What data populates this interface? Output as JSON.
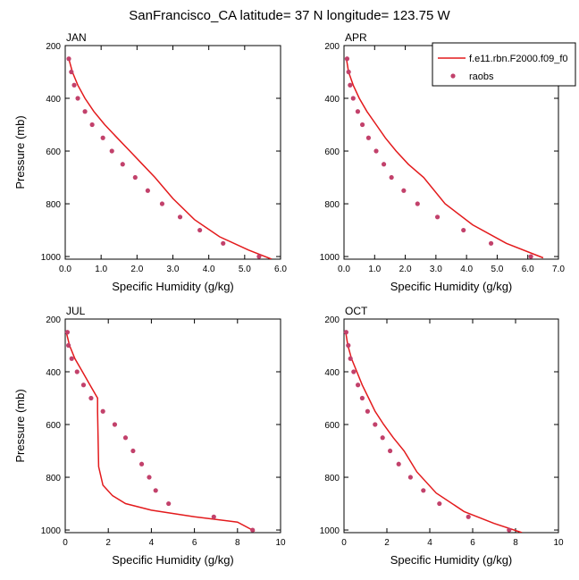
{
  "title": "SanFrancisco_CA  latitude= 37 N longitude= 123.75 W",
  "legend": {
    "model_label": "f.e11.rbn.F2000.f09_f0",
    "obs_label": "raobs",
    "model_color": "#e31a1c",
    "obs_color": "#c2416b"
  },
  "chart_data": [
    {
      "type": "line",
      "panel": "JAN",
      "xlabel": "Specific Humidity (g/kg)",
      "ylabel": "Pressure (mb)",
      "xlim": [
        0,
        6
      ],
      "ylim": [
        1010,
        200
      ],
      "xticks": [
        "0.0",
        "1.0",
        "2.0",
        "3.0",
        "4.0",
        "5.0",
        "6.0"
      ],
      "yticks": [
        "200",
        "400",
        "600",
        "800",
        "1000"
      ],
      "series": [
        {
          "name": "f.e11.rbn.F2000.f09_f0",
          "kind": "line",
          "x": [
            0.1,
            0.2,
            0.35,
            0.55,
            0.8,
            1.1,
            1.45,
            1.8,
            2.15,
            2.5,
            3.0,
            3.6,
            4.3,
            5.1,
            5.75
          ],
          "y": [
            250,
            300,
            350,
            400,
            450,
            500,
            550,
            600,
            650,
            700,
            780,
            860,
            925,
            975,
            1010
          ]
        },
        {
          "name": "raobs",
          "kind": "scatter",
          "x": [
            0.1,
            0.17,
            0.25,
            0.35,
            0.55,
            0.75,
            1.05,
            1.3,
            1.6,
            1.95,
            2.3,
            2.7,
            3.2,
            3.75,
            4.4,
            5.4
          ],
          "y": [
            250,
            300,
            350,
            400,
            450,
            500,
            550,
            600,
            650,
            700,
            750,
            800,
            850,
            900,
            950,
            1000
          ]
        }
      ]
    },
    {
      "type": "line",
      "panel": "APR",
      "xlabel": "Specific Humidity (g/kg)",
      "ylabel": "",
      "xlim": [
        0,
        7
      ],
      "ylim": [
        1010,
        200
      ],
      "xticks": [
        "0.0",
        "1.0",
        "2.0",
        "3.0",
        "4.0",
        "5.0",
        "6.0",
        "7.0"
      ],
      "yticks": [
        "200",
        "400",
        "600",
        "800",
        "1000"
      ],
      "series": [
        {
          "name": "f.e11.rbn.F2000.f09_f0",
          "kind": "line",
          "x": [
            0.08,
            0.15,
            0.3,
            0.5,
            0.75,
            1.05,
            1.35,
            1.7,
            2.1,
            2.6,
            3.3,
            4.2,
            5.3,
            6.5
          ],
          "y": [
            250,
            300,
            350,
            400,
            450,
            500,
            550,
            600,
            650,
            700,
            800,
            880,
            950,
            1005
          ]
        },
        {
          "name": "raobs",
          "kind": "scatter",
          "x": [
            0.1,
            0.15,
            0.2,
            0.3,
            0.45,
            0.6,
            0.8,
            1.05,
            1.3,
            1.55,
            1.95,
            2.4,
            3.05,
            3.9,
            4.8,
            6.1
          ],
          "y": [
            250,
            300,
            350,
            400,
            450,
            500,
            550,
            600,
            650,
            700,
            750,
            800,
            850,
            900,
            950,
            1000
          ]
        }
      ]
    },
    {
      "type": "line",
      "panel": "JUL",
      "xlabel": "Specific Humidity (g/kg)",
      "ylabel": "Pressure (mb)",
      "xlim": [
        0,
        10
      ],
      "ylim": [
        1010,
        200
      ],
      "xticks": [
        "0",
        "2",
        "4",
        "6",
        "8",
        "10"
      ],
      "yticks": [
        "200",
        "400",
        "600",
        "800",
        "1000"
      ],
      "series": [
        {
          "name": "f.e11.rbn.F2000.f09_f0",
          "kind": "line",
          "x": [
            0.05,
            0.2,
            0.45,
            0.8,
            1.15,
            1.5,
            1.5,
            1.55,
            1.75,
            2.2,
            2.8,
            4.0,
            6.0,
            8.0,
            8.8
          ],
          "y": [
            250,
            300,
            350,
            400,
            450,
            500,
            550,
            760,
            830,
            870,
            900,
            925,
            950,
            970,
            1005
          ]
        },
        {
          "name": "raobs",
          "kind": "scatter",
          "x": [
            0.1,
            0.15,
            0.3,
            0.55,
            0.85,
            1.2,
            1.75,
            2.3,
            2.8,
            3.15,
            3.55,
            3.9,
            4.2,
            4.8,
            6.9,
            8.7
          ],
          "y": [
            250,
            300,
            350,
            400,
            450,
            500,
            550,
            600,
            650,
            700,
            750,
            800,
            850,
            900,
            950,
            1000
          ]
        }
      ]
    },
    {
      "type": "line",
      "panel": "OCT",
      "xlabel": "Specific Humidity (g/kg)",
      "ylabel": "",
      "xlim": [
        0,
        10
      ],
      "ylim": [
        1010,
        200
      ],
      "xticks": [
        "0",
        "2",
        "4",
        "6",
        "8",
        "10"
      ],
      "yticks": [
        "200",
        "400",
        "600",
        "800",
        "1000"
      ],
      "series": [
        {
          "name": "f.e11.rbn.F2000.f09_f0",
          "kind": "line",
          "x": [
            0.08,
            0.18,
            0.35,
            0.6,
            0.85,
            1.15,
            1.45,
            1.85,
            2.3,
            2.8,
            3.4,
            4.3,
            5.6,
            7.0,
            8.3
          ],
          "y": [
            250,
            300,
            350,
            400,
            450,
            500,
            550,
            600,
            650,
            700,
            780,
            860,
            930,
            975,
            1010
          ]
        },
        {
          "name": "raobs",
          "kind": "scatter",
          "x": [
            0.1,
            0.2,
            0.3,
            0.45,
            0.65,
            0.85,
            1.1,
            1.45,
            1.8,
            2.15,
            2.55,
            3.1,
            3.7,
            4.45,
            5.8,
            7.7
          ],
          "y": [
            250,
            300,
            350,
            400,
            450,
            500,
            550,
            600,
            650,
            700,
            750,
            800,
            850,
            900,
            950,
            1000
          ]
        }
      ]
    }
  ]
}
